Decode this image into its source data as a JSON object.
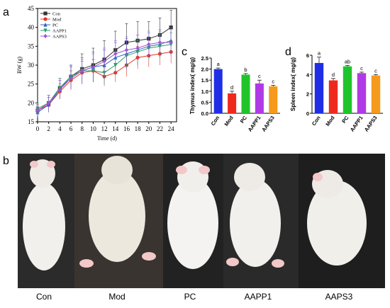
{
  "panel_labels": {
    "a": "a",
    "b": "b",
    "c": "c",
    "d": "d"
  },
  "photo_labels": [
    "Con",
    "Mod",
    "PC",
    "AAPP1",
    "AAPS3"
  ],
  "colors": {
    "Con": "#333333",
    "Mod": "#e0352b",
    "PC": "#2f62c7",
    "AAPP1": "#27a06a",
    "AAPS3": "#9b59d0",
    "bar_Con": "#1f2ee6",
    "bar_Mod": "#ee2a1f",
    "bar_PC": "#1fc42b",
    "bar_AAPP1": "#b03ae6",
    "bar_AAPS3": "#f59a1c"
  },
  "chart_data": [
    {
      "type": "line",
      "xlabel": "Time (d)",
      "ylabel": "BW (g)",
      "x": [
        0,
        2,
        4,
        6,
        8,
        10,
        12,
        14,
        16,
        18,
        20,
        22,
        24
      ],
      "xticks": [
        "0",
        "2",
        "4",
        "6",
        "8",
        "10",
        "12",
        "14",
        "16",
        "18",
        "20",
        "22",
        "24"
      ],
      "xlim": [
        0,
        25
      ],
      "ylim": [
        15,
        45
      ],
      "yticks": [
        "15",
        "20",
        "25",
        "30",
        "35",
        "40",
        "45"
      ],
      "legend_position": "top-left",
      "series": [
        {
          "name": "Con",
          "marker": "square",
          "values": [
            18,
            20,
            24,
            27,
            29,
            30,
            31.5,
            34,
            36,
            36.5,
            37,
            38,
            40
          ],
          "errors": [
            1.5,
            2,
            2.5,
            3,
            4,
            4.5,
            5,
            5,
            5,
            5,
            4.5,
            4.5,
            4.5
          ]
        },
        {
          "name": "Mod",
          "marker": "circle",
          "values": [
            18,
            19.5,
            23,
            26,
            28,
            28.5,
            27,
            28,
            30,
            32,
            32.5,
            33,
            33.5
          ],
          "errors": [
            1.5,
            2,
            2,
            2.5,
            3,
            3,
            2.5,
            2.5,
            3,
            3,
            3,
            3,
            3
          ]
        },
        {
          "name": "PC",
          "marker": "triangle",
          "values": [
            17.5,
            19.5,
            23.5,
            27,
            28.5,
            29.5,
            30,
            32,
            33,
            34,
            35,
            35.5,
            36.5
          ],
          "errors": [
            1.5,
            2,
            2.5,
            3,
            3.5,
            4,
            4,
            4,
            4,
            4,
            3.5,
            3.5,
            3.5
          ]
        },
        {
          "name": "AAPP1",
          "marker": "tri-down",
          "values": [
            18.5,
            20,
            24,
            27,
            28.5,
            28.5,
            28,
            30,
            32.5,
            33.5,
            34.5,
            35,
            35.5
          ],
          "errors": [
            1.5,
            2,
            2.5,
            2.5,
            3,
            3,
            3,
            3,
            3,
            3,
            3,
            3,
            3
          ]
        },
        {
          "name": "AAPS3",
          "marker": "diamond",
          "values": [
            18,
            20,
            23.5,
            26.5,
            28.5,
            29.5,
            31,
            33,
            34,
            34.5,
            35.5,
            36,
            36
          ],
          "errors": [
            1.5,
            2,
            2.5,
            3,
            3.5,
            3.5,
            3.5,
            3.5,
            3.5,
            3.5,
            3.5,
            3.5,
            3.5
          ]
        }
      ]
    },
    {
      "type": "bar",
      "ylabel": "Thymus index( mg/g)",
      "categories": [
        "Con",
        "Mod",
        "PC",
        "AAPP1",
        "AAPS3"
      ],
      "values": [
        2.0,
        0.9,
        1.75,
        1.35,
        1.22
      ],
      "errors": [
        0.05,
        0.1,
        0.05,
        0.15,
        0.05
      ],
      "letters": [
        "a",
        "d",
        "b",
        "c",
        "c"
      ],
      "ylim": [
        0,
        2.5
      ],
      "yticks": [
        "0.0",
        "0.5",
        "1.0",
        "1.5",
        "2.0",
        "2.5"
      ]
    },
    {
      "type": "bar",
      "ylabel": "Spleen index( mg/g)",
      "categories": [
        "Con",
        "Mod",
        "PC",
        "AAPP1",
        "AAPS3"
      ],
      "values": [
        5.2,
        3.4,
        4.85,
        4.15,
        3.9
      ],
      "errors": [
        0.6,
        0.2,
        0.1,
        0.1,
        0.1
      ],
      "letters": [
        "a",
        "d",
        "ab",
        "c",
        "c"
      ],
      "ylim": [
        0,
        6
      ],
      "yticks": [
        "0",
        "2",
        "4",
        "6"
      ]
    }
  ]
}
